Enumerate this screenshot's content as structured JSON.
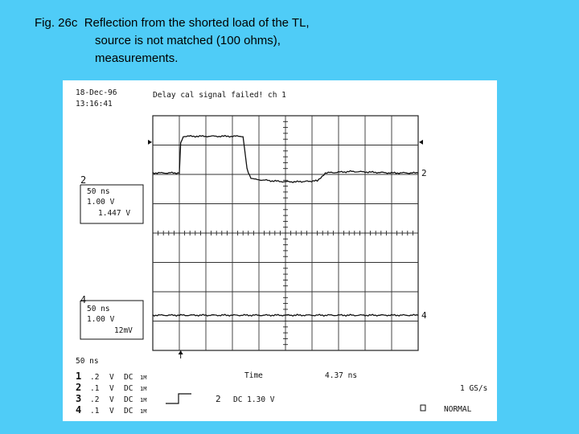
{
  "caption": {
    "line1": "Fig. 26c  Reflection from the shorted load of the TL,",
    "line2": "source is not matched (100 ohms),",
    "line3": "measurements."
  },
  "scope": {
    "date": "18-Dec-96",
    "time": "13:16:41",
    "status": "Delay cal signal failed! ch 1",
    "ch2_marker": "2",
    "ch4_marker": "4",
    "ch2_box": {
      "timebase": "50 ns",
      "volts": "1.00 V",
      "reading": "1.447 V"
    },
    "ch4_box": {
      "timebase": "50 ns",
      "volts": "1.00 V",
      "reading": "12mV"
    },
    "timebase": "50 ns",
    "time_label": "Time",
    "time_value": "4.37 ns",
    "sample_rate": "1 GS/s",
    "trigger_ch": "2",
    "trigger_info": "DC 1.30 V",
    "mode": "NORMAL",
    "channels": [
      {
        "num": "1",
        "scale": ".2",
        "unit": "V",
        "coupling": "DC",
        "imp": "1M"
      },
      {
        "num": "2",
        "scale": ".1",
        "unit": "V",
        "coupling": "DC",
        "imp": "1M"
      },
      {
        "num": "3",
        "scale": ".2",
        "unit": "V",
        "coupling": "DC",
        "imp": "1M"
      },
      {
        "num": "4",
        "scale": ".1",
        "unit": "V",
        "coupling": "DC",
        "imp": "1M"
      }
    ]
  },
  "chart_data": {
    "type": "line",
    "grid": true,
    "divisions": {
      "x": 10,
      "y": 8
    },
    "series": [
      {
        "x_div": [
          0,
          1.0,
          1.05,
          1.15,
          2.5,
          3.4,
          3.55,
          3.7,
          4.0,
          4.5,
          5.0,
          5.5,
          6.2,
          6.5,
          7.5,
          9.0,
          10
        ],
        "y_div": [
          2.05,
          2.05,
          3.05,
          3.3,
          3.3,
          3.3,
          2.2,
          1.85,
          1.82,
          1.78,
          1.75,
          1.75,
          1.78,
          2.05,
          2.1,
          2.05,
          2.05
        ]
      },
      {
        "x_div": [
          0,
          10
        ],
        "y_div": [
          -2.8,
          -2.8
        ]
      }
    ],
    "trigger_x_div": 1.05
  }
}
